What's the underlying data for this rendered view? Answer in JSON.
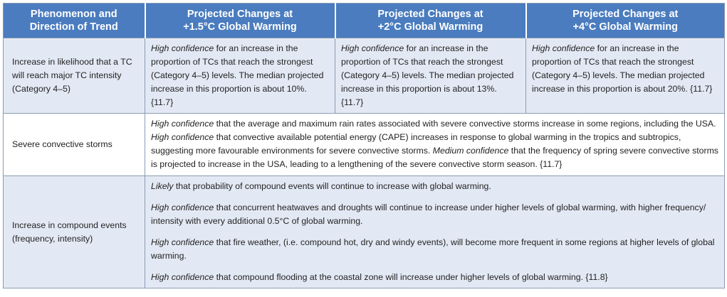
{
  "headers": {
    "col1": [
      "Phenomenon and",
      "Direction of Trend"
    ],
    "col2": [
      "Projected Changes at",
      "+1.5°C Global Warming"
    ],
    "col3": [
      "Projected Changes at",
      "+2°C Global Warming"
    ],
    "col4": [
      "Projected Changes at",
      "+4°C Global Warming"
    ]
  },
  "row1": {
    "label": "Increase in likelihood that a TC will reach major TC intensity (Category 4–5)",
    "confidence": "High confidence",
    "c15": " for an increase in the proportion of TCs that reach the strongest (Category 4–5) levels. The median projected increase in this proportion is about 10%. {11.7}",
    "c2": " for an increase in the proportion of TCs that reach the strongest (Category 4–5) levels. The median projected increase in this proportion is about 13%. {11.7}",
    "c4": " for an increase in the proportion of TCs that reach the strongest (Category 4–5) levels. The median projected increase in this proportion is about 20%. {11.7}"
  },
  "row2": {
    "label": "Severe convective storms",
    "conf1": "High confidence",
    "text1": " that the average and maximum rain rates associated with severe convective storms increase in some regions, including the USA. ",
    "conf2": "High confidence",
    "text2": " that convective available potential energy (CAPE) increases in response to global warming in the tropics and subtropics, suggesting more favourable environments for severe convective storms. ",
    "conf3": "Medium confidence",
    "text3": " that the frequency of spring severe convective storms is projected to increase in the USA, leading to a lengthening of the severe convective storm season. {11.7}"
  },
  "row3": {
    "label": "Increase in compound events (frequency, intensity)",
    "p1_conf": "Likely",
    "p1_text": " that probability of compound events will continue to increase with global warming.",
    "p2_conf": "High confidence",
    "p2_text": " that concurrent heatwaves and droughts will continue to increase under higher levels of global warming, with higher frequency/ intensity with every additional 0.5°C of global warming.",
    "p3_conf": "High confidence",
    "p3_text": " that fire weather, (i.e. compound hot, dry and windy events), will become more frequent in some regions at higher levels of global warming.",
    "p4_conf": "High confidence",
    "p4_text": " that compound flooding at the coastal zone will increase under higher levels of global warming. {11.8}"
  }
}
